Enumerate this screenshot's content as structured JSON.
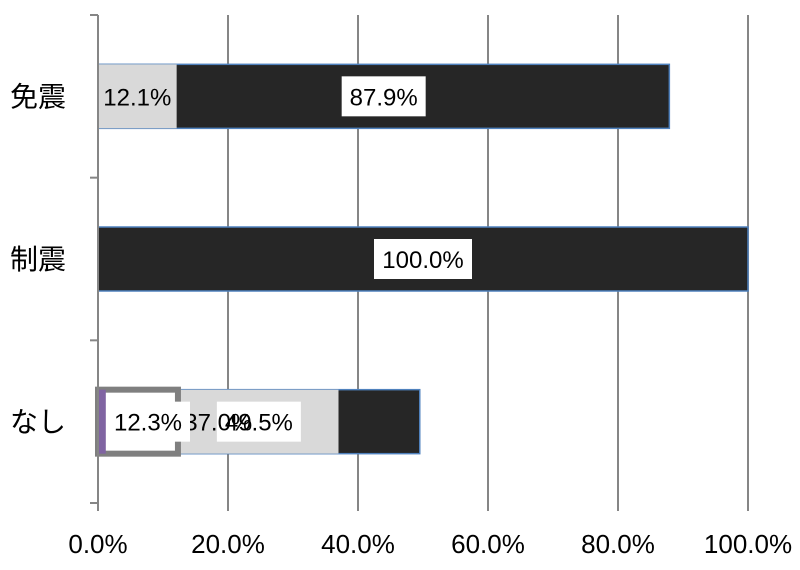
{
  "chart_data": {
    "type": "bar",
    "orientation": "horizontal",
    "stacked": "percent",
    "title": "",
    "xlabel": "",
    "ylabel": "",
    "xlim": [
      0,
      100
    ],
    "grid": true,
    "x_ticks": [
      "0.0%",
      "20.0%",
      "40.0%",
      "60.0%",
      "80.0%",
      "100.0%"
    ],
    "categories": [
      "免震",
      "制震",
      "なし"
    ],
    "series": [
      {
        "values": [
          87.9,
          100.0,
          49.5
        ],
        "labels": [
          "87.9%",
          "100.0%",
          "49.5%"
        ],
        "color": "#262626"
      },
      {
        "values": [
          12.1,
          0,
          37.0
        ],
        "labels": [
          "12.1%",
          "",
          "37.0%"
        ],
        "color": "#d9d9d9"
      },
      {
        "values": [
          0,
          0,
          12.3
        ],
        "labels": [
          "",
          "",
          "12.3%"
        ],
        "color": "#ffffff"
      },
      {
        "values": [
          0,
          0,
          1.2
        ],
        "labels": [
          "",
          "",
          ""
        ],
        "color": "#8064a2"
      }
    ]
  }
}
